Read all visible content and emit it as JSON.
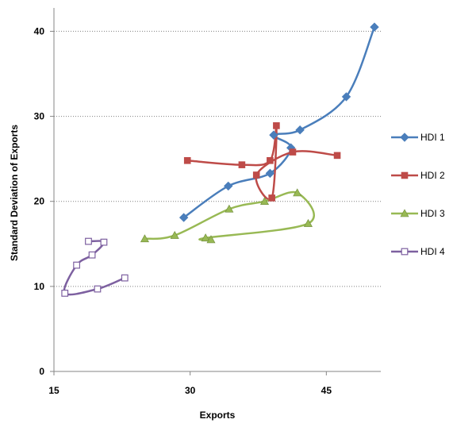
{
  "chart_data": {
    "type": "scatter",
    "title": "",
    "xlabel": "Exports",
    "ylabel": "Standard Deviation of Exports",
    "xlim": [
      15,
      51
    ],
    "ylim": [
      0,
      42
    ],
    "xticks": [
      15,
      30,
      45
    ],
    "yticks": [
      0,
      10,
      20,
      30,
      40
    ],
    "grid": "horizontal dotted",
    "legend_position": "right",
    "series": [
      {
        "name": "HDI 1",
        "color": "#4a7ebb",
        "marker": "diamond",
        "points": [
          [
            29.3,
            18.1
          ],
          [
            34.2,
            21.8
          ],
          [
            38.8,
            23.3
          ],
          [
            41.1,
            26.3
          ],
          [
            39.2,
            27.8
          ],
          [
            42.1,
            28.4
          ],
          [
            47.2,
            32.3
          ],
          [
            50.3,
            40.5
          ]
        ]
      },
      {
        "name": "HDI 2",
        "color": "#be4b48",
        "marker": "square",
        "points": [
          [
            29.7,
            24.8
          ],
          [
            35.7,
            24.3
          ],
          [
            38.8,
            24.8
          ],
          [
            39.5,
            28.9
          ],
          [
            39.0,
            20.4
          ],
          [
            37.3,
            23.1
          ],
          [
            41.3,
            25.8
          ],
          [
            46.2,
            25.4
          ]
        ]
      },
      {
        "name": "HDI 3",
        "color": "#98b954",
        "marker": "triangle",
        "points": [
          [
            25.0,
            15.6
          ],
          [
            28.3,
            16.0
          ],
          [
            34.3,
            19.1
          ],
          [
            38.2,
            20.0
          ],
          [
            41.8,
            21.0
          ],
          [
            43.0,
            17.4
          ],
          [
            31.7,
            15.7
          ],
          [
            32.3,
            15.5
          ]
        ]
      },
      {
        "name": "HDI 4",
        "color": "#7d60a0",
        "marker": "open-square",
        "points": [
          [
            22.8,
            11.0
          ],
          [
            19.8,
            9.7
          ],
          [
            16.2,
            9.2
          ],
          [
            17.5,
            12.5
          ],
          [
            19.2,
            13.7
          ],
          [
            20.5,
            15.2
          ],
          [
            18.8,
            15.3
          ]
        ]
      }
    ]
  }
}
